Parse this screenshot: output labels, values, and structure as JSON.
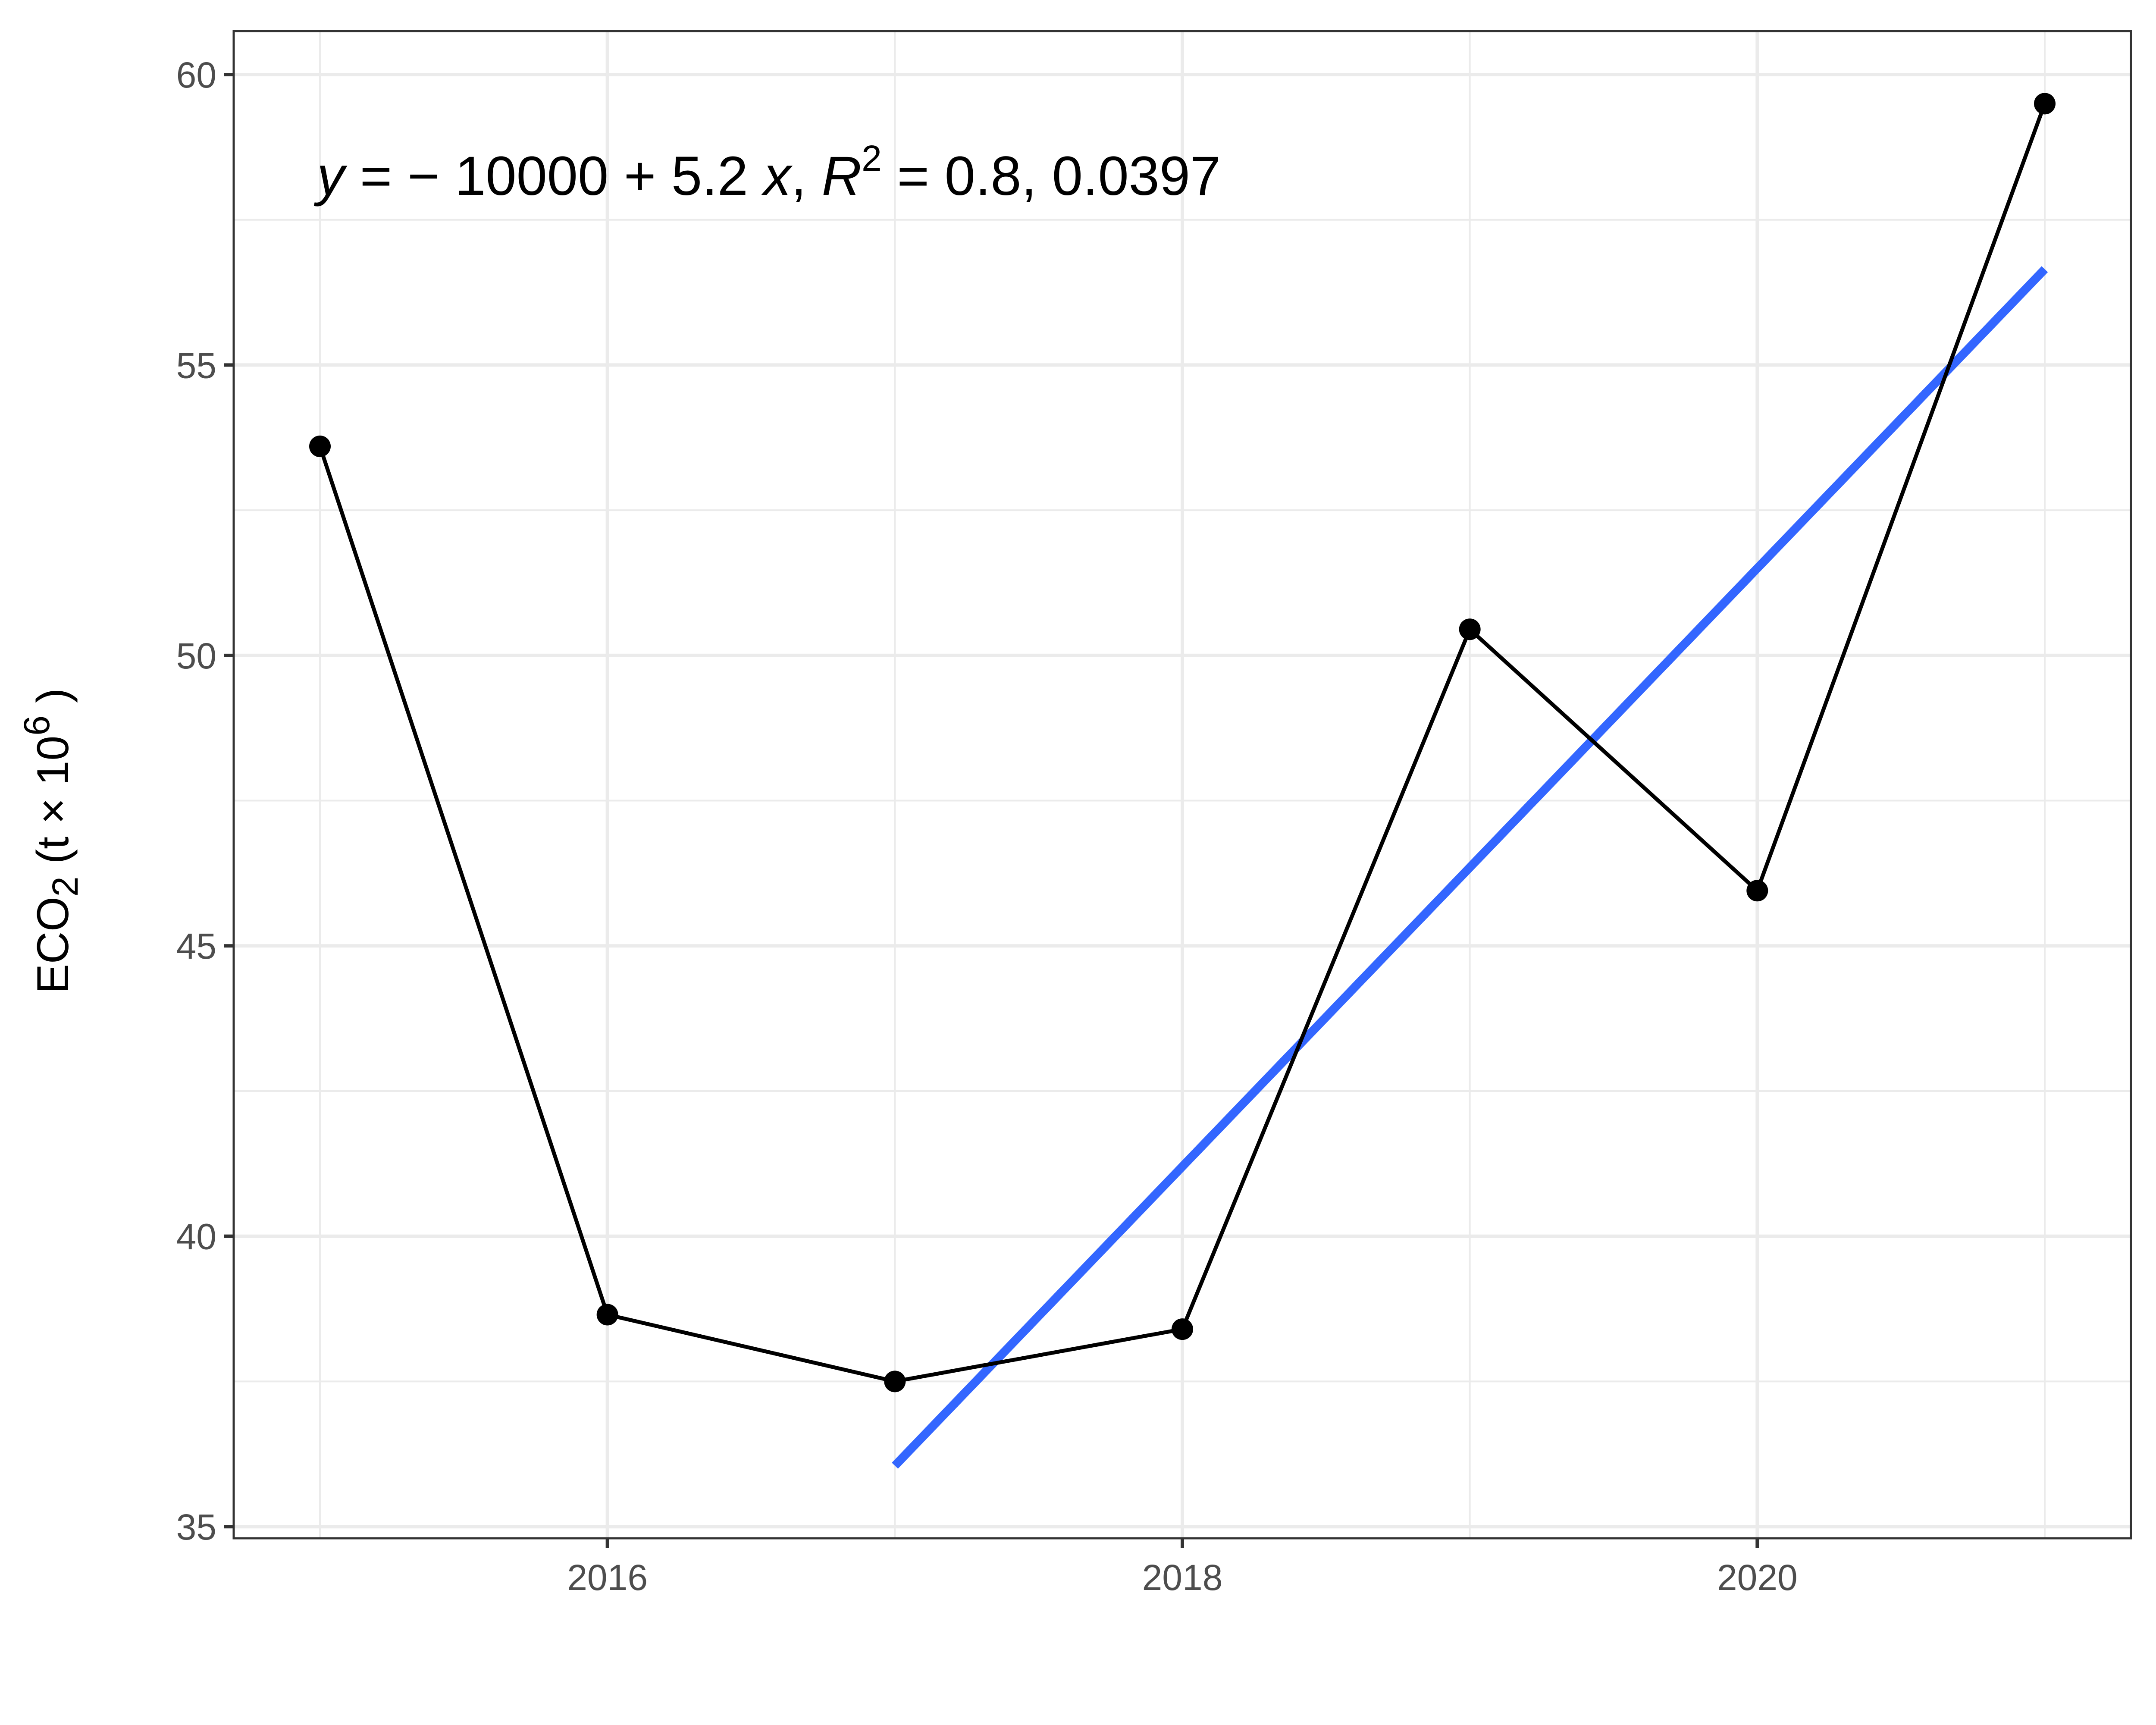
{
  "chart_data": {
    "type": "line",
    "x": [
      2015,
      2016,
      2017,
      2018,
      2019,
      2020,
      2021
    ],
    "series": [
      {
        "values": [
          53.6,
          38.65,
          37.5,
          38.4,
          50.45,
          45.95,
          59.5
        ],
        "color": "#000000"
      }
    ],
    "fit_line": {
      "x": [
        2017,
        2021
      ],
      "y": [
        36.05,
        56.65
      ],
      "color": "#3366FF"
    },
    "annotation": {
      "y_var": "y",
      "eq_rest": " = − 10000 + 5.2 ",
      "x_var": "x",
      "sep1": ",  ",
      "r_var": "R",
      "r_exp": "2",
      "r_rest": " = 0.8,  0.0397"
    },
    "ylabel": {
      "main": "ECO",
      "sub": "2",
      "mid": "  (t × 10",
      "exp": "6",
      "end": " )"
    },
    "xlabel": "",
    "xlim": [
      2014.7,
      2021.3
    ],
    "ylim": [
      34.8,
      60.75
    ],
    "x_ticks": [
      "2016",
      "2018",
      "2020"
    ],
    "x_tick_values": [
      2016,
      2018,
      2020
    ],
    "y_ticks": [
      "35",
      "40",
      "45",
      "50",
      "55",
      "60"
    ],
    "y_tick_values": [
      35,
      40,
      45,
      50,
      55,
      60
    ],
    "grid": true,
    "colors": {
      "grid": "#ebebeb",
      "panel_border": "#333333",
      "tick_text": "#4d4d4d"
    }
  }
}
